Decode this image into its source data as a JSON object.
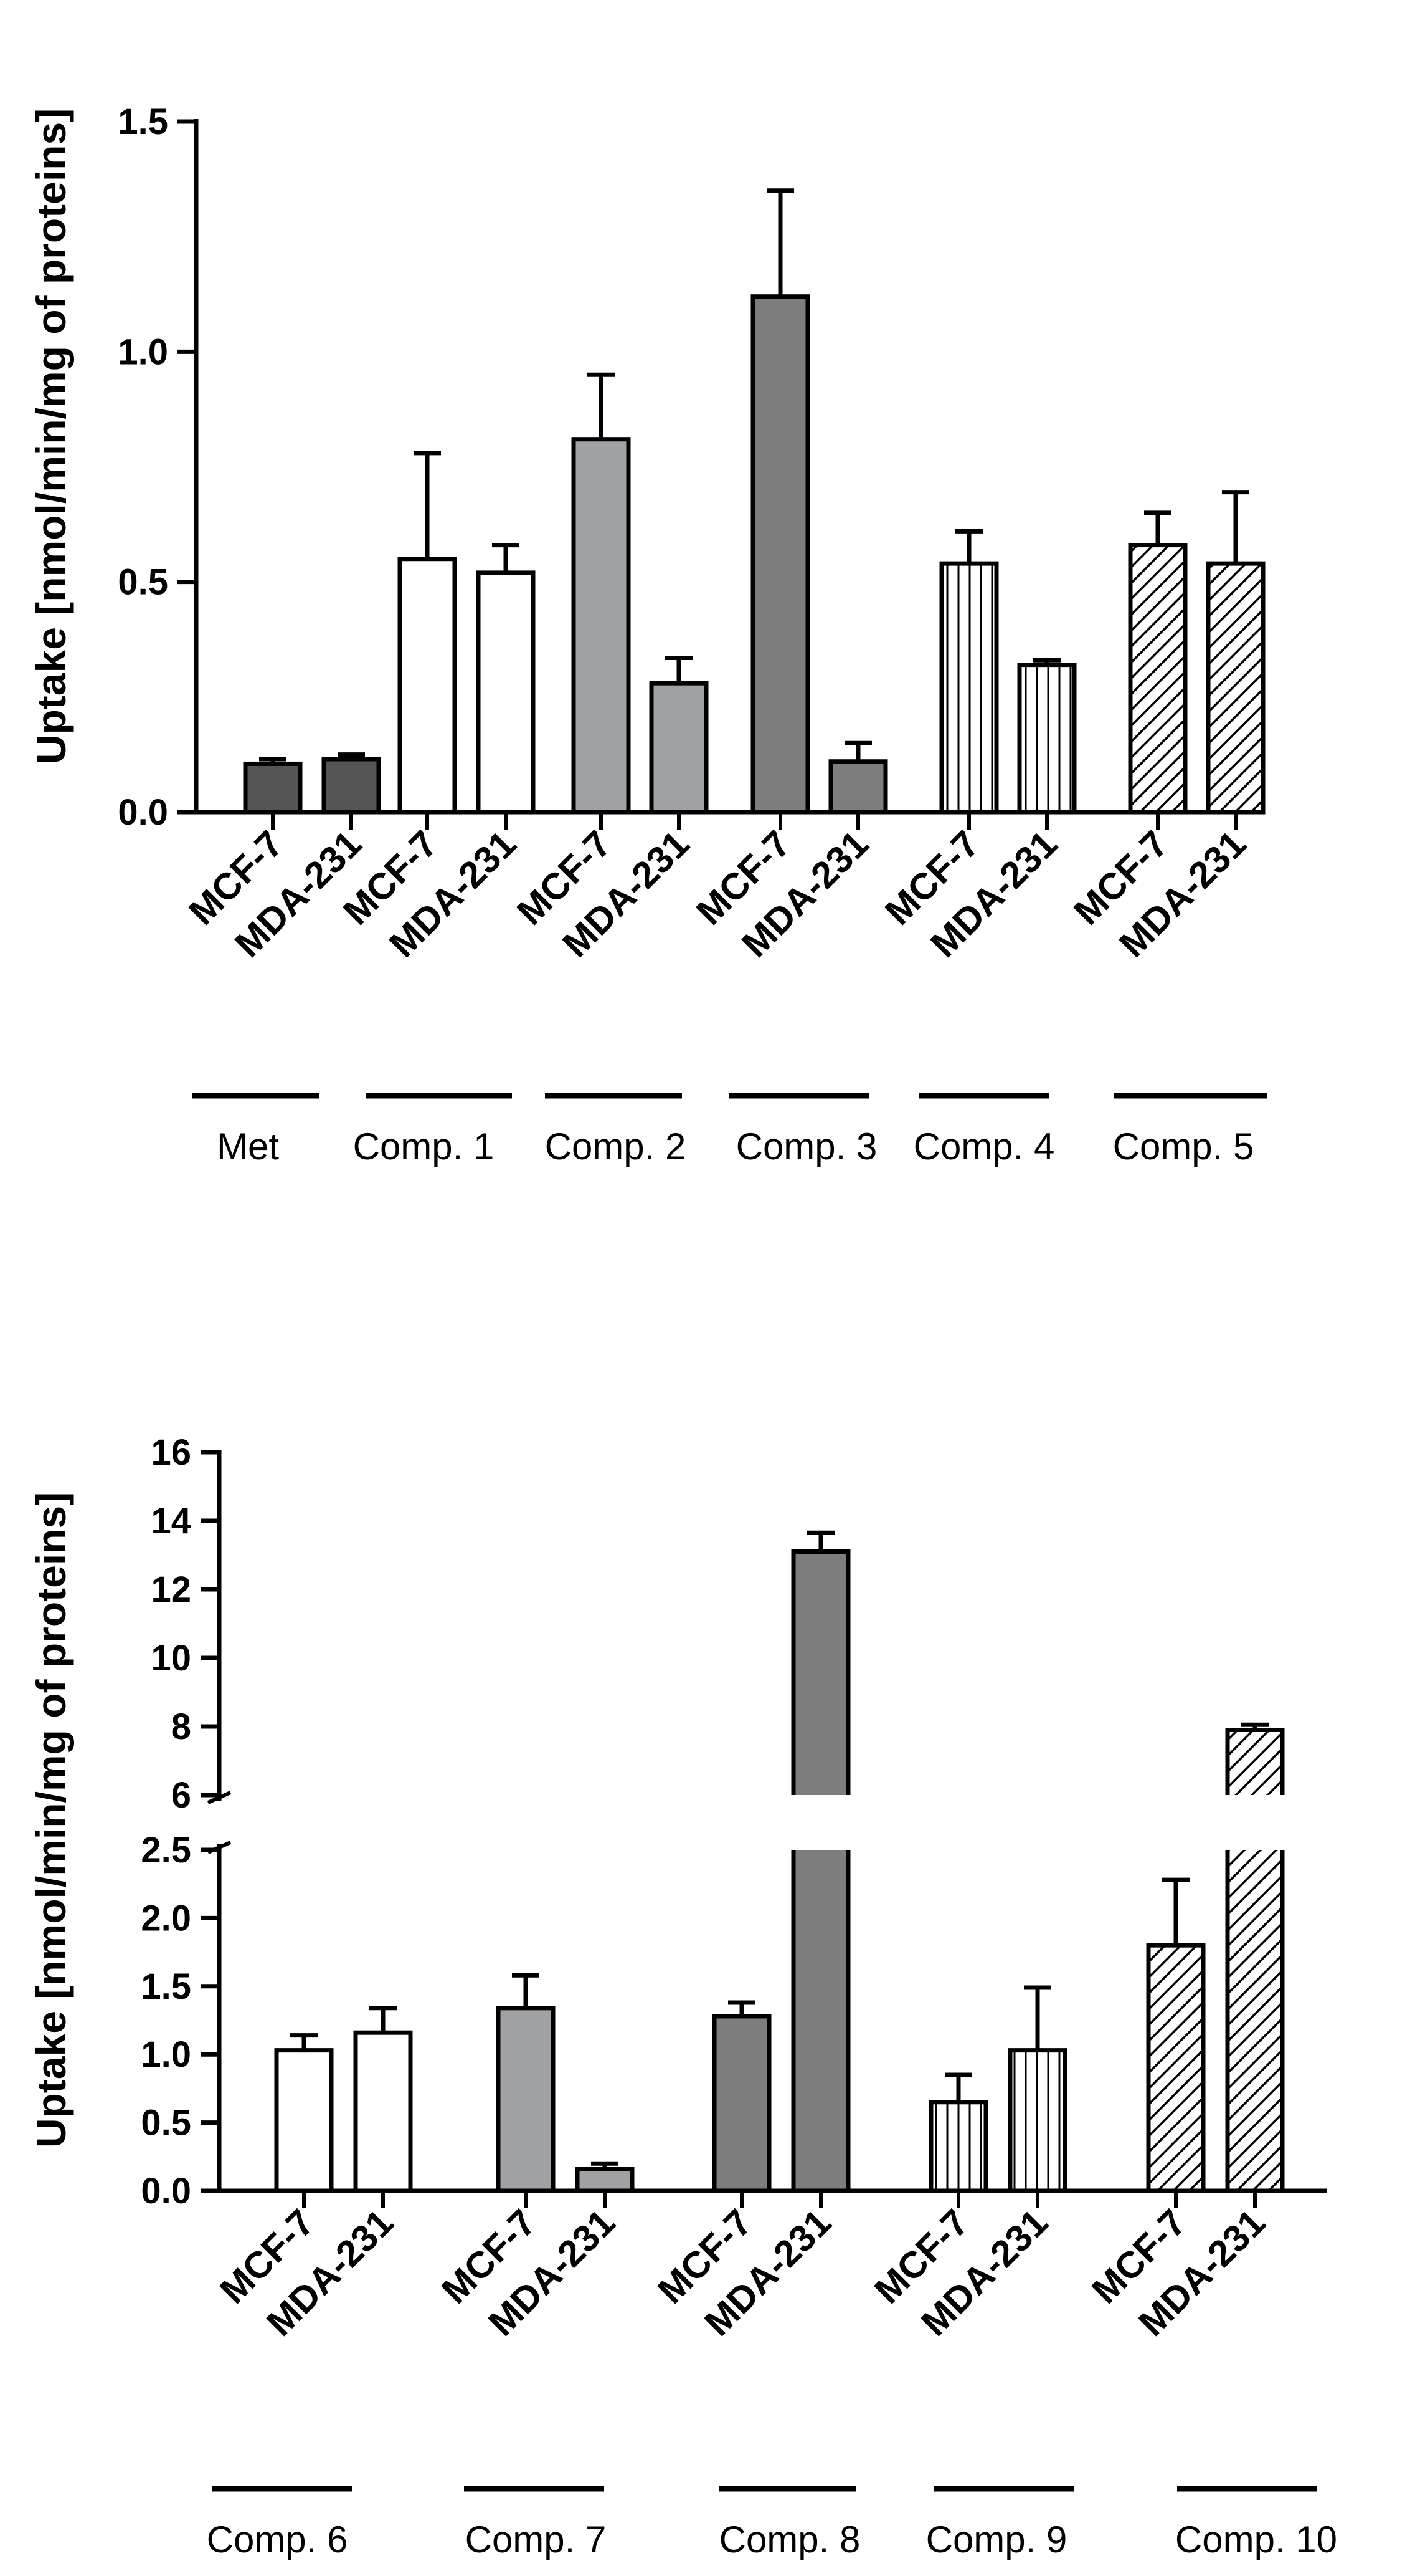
{
  "colors": {
    "met": "#555555",
    "open": "#ffffff",
    "light_gray": "#a0a1a5",
    "mid_gray": "#7d7d7d",
    "stroke": "#000000"
  },
  "chart_data": [
    {
      "type": "bar",
      "ylabel": "Uptake [nmol/min/mg of proteins]",
      "ylim": [
        0,
        1.5
      ],
      "yticks": [
        0.0,
        0.5,
        1.0,
        1.5
      ],
      "ytick_labels": [
        "0.0",
        "0.5",
        "1.0",
        "1.5"
      ],
      "bar_labels": [
        "MCF-7",
        "MDA-231"
      ],
      "groups": [
        {
          "label": "Met",
          "fill": "met",
          "values": [
            0.105,
            0.115
          ],
          "errors": [
            0.01,
            0.01
          ]
        },
        {
          "label": "Comp. 1",
          "fill": "open",
          "values": [
            0.55,
            0.52
          ],
          "errors": [
            0.23,
            0.06
          ]
        },
        {
          "label": "Comp. 2",
          "fill": "light_gray",
          "values": [
            0.81,
            0.28
          ],
          "errors": [
            0.14,
            0.055
          ]
        },
        {
          "label": "Comp. 3",
          "fill": "mid_gray",
          "values": [
            1.12,
            0.11
          ],
          "errors": [
            0.23,
            0.04
          ]
        },
        {
          "label": "Comp. 4",
          "fill": "vstripe",
          "values": [
            0.54,
            0.32
          ],
          "errors": [
            0.07,
            0.01
          ]
        },
        {
          "label": "Comp. 5",
          "fill": "hatch",
          "values": [
            0.58,
            0.54
          ],
          "errors": [
            0.07,
            0.155
          ]
        }
      ]
    },
    {
      "type": "bar",
      "ylabel": "Uptake [nmol/min/mg of proteins]",
      "ylim": [
        0,
        16
      ],
      "axis_break": [
        2.5,
        6
      ],
      "yticks_lower": [
        0.0,
        0.5,
        1.0,
        1.5,
        2.0,
        2.5
      ],
      "ytick_labels_lower": [
        "0.0",
        "0.5",
        "1.0",
        "1.5",
        "2.0",
        "2.5"
      ],
      "yticks_upper": [
        6,
        8,
        10,
        12,
        14,
        16
      ],
      "ytick_labels_upper": [
        "6",
        "8",
        "10",
        "12",
        "14",
        "16"
      ],
      "bar_labels": [
        "MCF-7",
        "MDA-231"
      ],
      "groups": [
        {
          "label": "Comp. 6",
          "fill": "open",
          "values": [
            1.03,
            1.16
          ],
          "errors": [
            0.11,
            0.18
          ]
        },
        {
          "label": "Comp. 7",
          "fill": "light_gray",
          "values": [
            1.34,
            0.16
          ],
          "errors": [
            0.24,
            0.04
          ]
        },
        {
          "label": "Comp. 8",
          "fill": "mid_gray",
          "values": [
            1.28,
            13.1
          ],
          "errors": [
            0.1,
            0.55
          ]
        },
        {
          "label": "Comp. 9",
          "fill": "vstripe",
          "values": [
            0.65,
            1.03
          ],
          "errors": [
            0.2,
            0.46
          ]
        },
        {
          "label": "Comp. 10",
          "fill": "hatch",
          "values": [
            1.8,
            7.9
          ],
          "errors": [
            0.48,
            0.15
          ]
        }
      ]
    }
  ]
}
